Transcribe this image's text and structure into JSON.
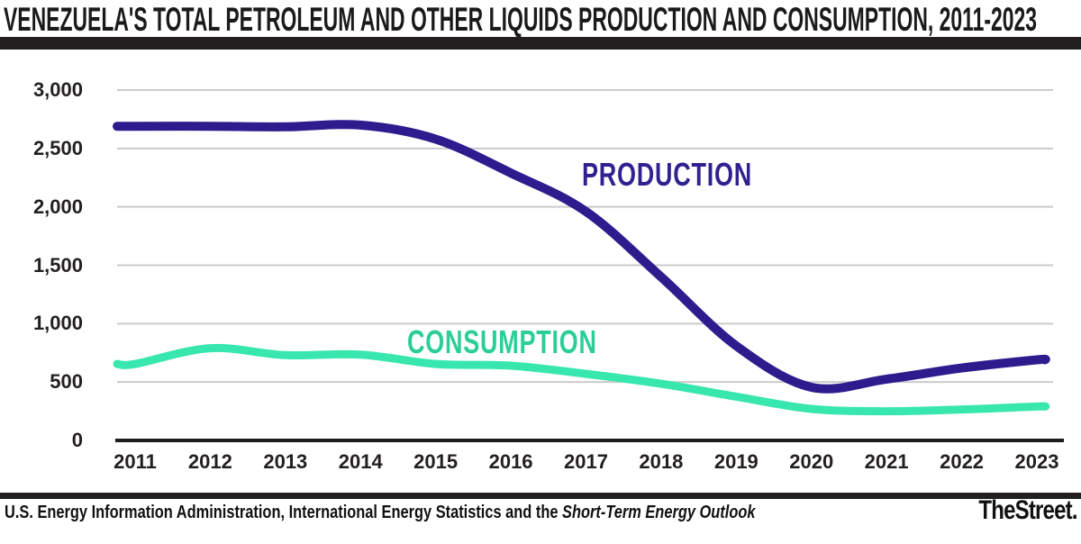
{
  "title": "VENEZUELA'S TOTAL PETROLEUM AND OTHER LIQUIDS PRODUCTION AND CONSUMPTION, 2011-2023",
  "footer": {
    "source_regular": "U.S. Energy Information Administration, International Energy Statistics and the ",
    "source_italic": "Short-Term Energy Outlook",
    "brand": "TheStreet."
  },
  "colors": {
    "production_line": "#2e1c8e",
    "production_label": "#2f2290",
    "consumption_line": "#38e7ad",
    "consumption_label": "#2bce97",
    "gridline": "#cbcbcb",
    "axis": "#1c1c1c",
    "tick_text": "#231f20",
    "divider_bar": "#231f20",
    "background": "#ffffff"
  },
  "chart_data": {
    "type": "line",
    "title": "VENEZUELA'S TOTAL PETROLEUM AND OTHER LIQUIDS PRODUCTION AND CONSUMPTION, 2011-2023",
    "x": [
      2011,
      2012,
      2013,
      2014,
      2015,
      2016,
      2017,
      2018,
      2019,
      2020,
      2021,
      2022,
      2023
    ],
    "x_labels": [
      "2011",
      "2012",
      "2013",
      "2014",
      "2015",
      "2016",
      "2017",
      "2018",
      "2019",
      "2020",
      "2021",
      "2022",
      "2023"
    ],
    "series": [
      {
        "name": "PRODUCTION",
        "color": "#2e1c8e",
        "label_color": "#2f2290",
        "stroke_width": 10,
        "values": [
          2690,
          2690,
          2685,
          2700,
          2580,
          2290,
          1960,
          1400,
          810,
          455,
          525,
          620,
          690
        ]
      },
      {
        "name": "CONSUMPTION",
        "color": "#38e7ad",
        "label_color": "#2bce97",
        "stroke_width": 9,
        "values": [
          655,
          790,
          730,
          735,
          655,
          640,
          570,
          485,
          375,
          270,
          250,
          265,
          290
        ]
      }
    ],
    "y_ticks": [
      {
        "label": "3,000",
        "value": 3000
      },
      {
        "label": "2,500",
        "value": 2500
      },
      {
        "label": "2,000",
        "value": 2000
      },
      {
        "label": "1,500",
        "value": 1500
      },
      {
        "label": "1,000",
        "value": 1000
      },
      {
        "label": "500",
        "value": 500
      },
      {
        "label": "0",
        "value": 0
      }
    ],
    "xlabel": "",
    "ylabel": "",
    "ylim": [
      0,
      3000
    ],
    "grid": true,
    "legend_position": "inline-annotations"
  }
}
